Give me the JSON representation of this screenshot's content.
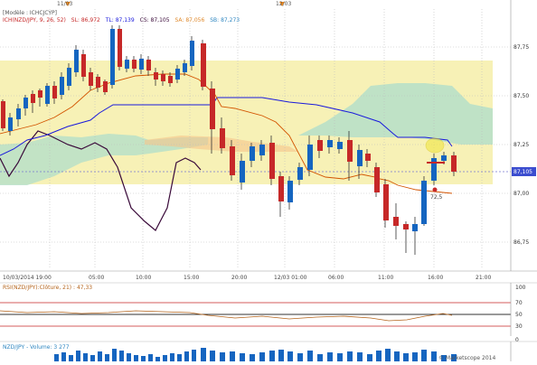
{
  "main_panel": {
    "header_line1": "[Modèle : ICHCJCYP]",
    "header_line2_prefix": "ICH(NZD/JPY, 9, 26, 52)",
    "sl": "SL: 86,972",
    "tl": "TL: 87,139",
    "cs": "CS: 87,105",
    "sa": "SA: 87,056",
    "sb": "SB: 87,273",
    "date_marker_top_left": "11/03",
    "date_marker_top_mid": "12/03",
    "price_ticks": [
      "87,75",
      "87,50",
      "87,25",
      "87,00",
      "86,75"
    ],
    "current_price": "87,105",
    "point_label": "72,5",
    "time_ticks": [
      "10/03/2014 19:00",
      "05:00",
      "10:00",
      "15:00",
      "20:00",
      "12/03 01:00",
      "06:00",
      "11:00",
      "16:00",
      "21:00"
    ]
  },
  "rsi_panel": {
    "title": "RSI(NZD/JPY):Clôture, 21) : 47,33",
    "ticks": [
      "100",
      "70",
      "50",
      "30",
      "0"
    ]
  },
  "volume_panel": {
    "title": "NZD/JPY - Volume: 3 277",
    "watermark": "ProRealTime"
  },
  "footer": {
    "copyright": "© Marketscope 2014"
  },
  "colors": {
    "bull": "#1565c0",
    "bear": "#c62828",
    "tenkan": "#c62828",
    "kijun": "#1a1adc",
    "chikou": "#3a0a3a",
    "cloud_yellow": "#f7f0a8",
    "cloud_green": "#b8e0c8",
    "rsi_line": "#b5651d"
  }
}
